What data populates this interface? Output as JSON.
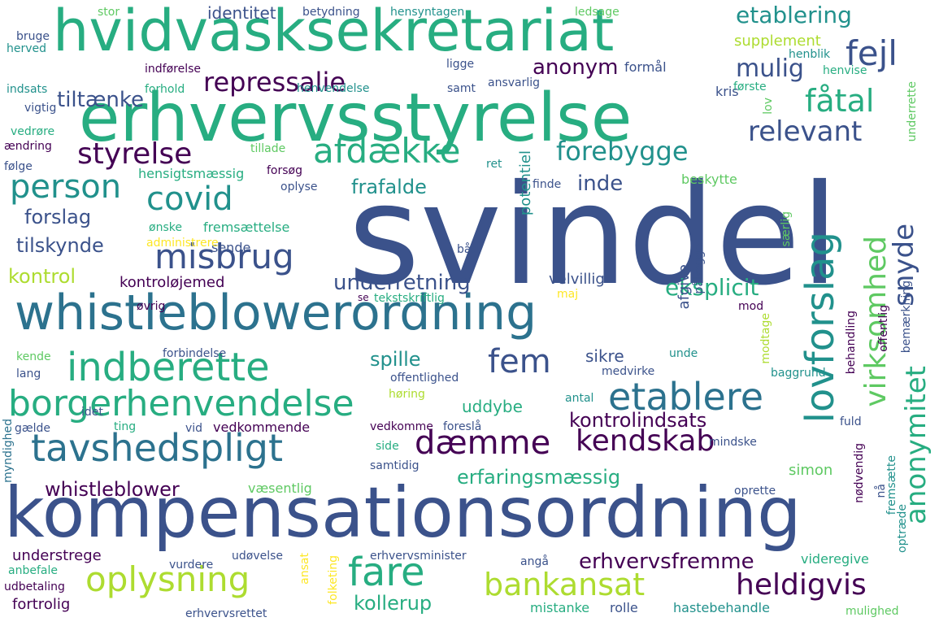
{
  "colors": {
    "purple": "#440154",
    "indigo": "#3b528b",
    "blue": "#2c728e",
    "teal": "#21918c",
    "green": "#27ad81",
    "lightgreen": "#5ec962",
    "lime": "#addc30",
    "yellow": "#fde725"
  },
  "words": [
    {
      "text": "svindel",
      "color": "#3b528b"
    },
    {
      "text": "erhvervsstyrelse",
      "color": "#27ad81"
    },
    {
      "text": "kompensationsordning",
      "color": "#3b528b"
    },
    {
      "text": "hvidvasksekretariat",
      "color": "#27ad81"
    },
    {
      "text": "whistleblowerordning",
      "color": "#2c728e"
    },
    {
      "text": "indberette",
      "color": "#27ad81"
    },
    {
      "text": "borgerhenvendelse",
      "color": "#27ad81"
    },
    {
      "text": "tavshedspligt",
      "color": "#2c728e"
    },
    {
      "text": "lovforslag",
      "color": "#21918c"
    },
    {
      "text": "etablere",
      "color": "#2c728e"
    },
    {
      "text": "misbrug",
      "color": "#3b528b"
    },
    {
      "text": "afdække",
      "color": "#27ad81"
    },
    {
      "text": "styrelse",
      "color": "#440154"
    },
    {
      "text": "person",
      "color": "#21918c"
    },
    {
      "text": "covid",
      "color": "#21918c"
    },
    {
      "text": "oplysning",
      "color": "#addc30"
    },
    {
      "text": "fare",
      "color": "#27ad81"
    },
    {
      "text": "bankansat",
      "color": "#addc30"
    },
    {
      "text": "heldigvis",
      "color": "#440154"
    },
    {
      "text": "dæmme",
      "color": "#440154"
    },
    {
      "text": "kendskab",
      "color": "#440154"
    },
    {
      "text": "fem",
      "color": "#3b528b"
    },
    {
      "text": "repressalie",
      "color": "#440154"
    },
    {
      "text": "fejl",
      "color": "#3b528b"
    },
    {
      "text": "fåtal",
      "color": "#27ad81"
    },
    {
      "text": "relevant",
      "color": "#3b528b"
    },
    {
      "text": "forebygge",
      "color": "#21918c"
    },
    {
      "text": "mulig",
      "color": "#3b528b"
    },
    {
      "text": "etablering",
      "color": "#21918c"
    },
    {
      "text": "anonym",
      "color": "#440154"
    },
    {
      "text": "tiltænke",
      "color": "#3b528b"
    },
    {
      "text": "virksomhed",
      "color": "#5ec962"
    },
    {
      "text": "snyde",
      "color": "#3b528b"
    },
    {
      "text": "anonymitet",
      "color": "#27ad81"
    },
    {
      "text": "eksplicit",
      "color": "#27ad81"
    },
    {
      "text": "underretning",
      "color": "#3b528b"
    },
    {
      "text": "frafalde",
      "color": "#21918c"
    },
    {
      "text": "inde",
      "color": "#3b528b"
    },
    {
      "text": "forslag",
      "color": "#3b528b"
    },
    {
      "text": "tilskynde",
      "color": "#3b528b"
    },
    {
      "text": "kontrol",
      "color": "#addc30"
    },
    {
      "text": "kontroløjemed",
      "color": "#440154"
    },
    {
      "text": "whistleblower",
      "color": "#440154"
    },
    {
      "text": "erfaringsmæssig",
      "color": "#27ad81"
    },
    {
      "text": "kontrolindsats",
      "color": "#440154"
    },
    {
      "text": "uddybe",
      "color": "#27ad81"
    },
    {
      "text": "spille",
      "color": "#21918c"
    },
    {
      "text": "sikre",
      "color": "#3b528b"
    },
    {
      "text": "erhvervsfremme",
      "color": "#440154"
    },
    {
      "text": "kollerup",
      "color": "#27ad81"
    },
    {
      "text": "identitet",
      "color": "#3b528b"
    },
    {
      "text": "supplement",
      "color": "#addc30"
    },
    {
      "text": "formål",
      "color": "#3b528b"
    },
    {
      "text": "velvillig",
      "color": "#3b528b"
    },
    {
      "text": "potentiel",
      "color": "#21918c"
    },
    {
      "text": "fremsættelse",
      "color": "#27ad81"
    },
    {
      "text": "sende",
      "color": "#3b528b"
    },
    {
      "text": "forsøg",
      "color": "#440154"
    },
    {
      "text": "tillade",
      "color": "#5ec962"
    },
    {
      "text": "hensigtsmæssig",
      "color": "#27ad81"
    },
    {
      "text": "oplyse",
      "color": "#3b528b"
    },
    {
      "text": "ønske",
      "color": "#27ad81"
    },
    {
      "text": "administrere",
      "color": "#fde725"
    },
    {
      "text": "ret",
      "color": "#21918c"
    },
    {
      "text": "finde",
      "color": "#3b528b"
    },
    {
      "text": "beskytte",
      "color": "#5ec962"
    },
    {
      "text": "afgive",
      "color": "#3b528b"
    },
    {
      "text": "pålægge",
      "color": "#3b528b"
    },
    {
      "text": "særlig",
      "color": "#5ec962"
    },
    {
      "text": "kris",
      "color": "#3b528b"
    },
    {
      "text": "første",
      "color": "#27ad81"
    },
    {
      "text": "henvise",
      "color": "#27ad81"
    },
    {
      "text": "henblik",
      "color": "#21918c"
    },
    {
      "text": "lov",
      "color": "#5ec962"
    },
    {
      "text": "underrette",
      "color": "#5ec962"
    },
    {
      "text": "ansvarlig",
      "color": "#3b528b"
    },
    {
      "text": "samt",
      "color": "#3b528b"
    },
    {
      "text": "henvendelse",
      "color": "#21918c"
    },
    {
      "text": "ligge",
      "color": "#3b528b"
    },
    {
      "text": "indførelse",
      "color": "#440154"
    },
    {
      "text": "forhold",
      "color": "#27ad81"
    },
    {
      "text": "indsats",
      "color": "#21918c"
    },
    {
      "text": "vigtig",
      "color": "#3b528b"
    },
    {
      "text": "vedrøre",
      "color": "#27ad81"
    },
    {
      "text": "ændring",
      "color": "#440154"
    },
    {
      "text": "følge",
      "color": "#3b528b"
    },
    {
      "text": "bruge",
      "color": "#3b528b"
    },
    {
      "text": "herved",
      "color": "#21918c"
    },
    {
      "text": "stor",
      "color": "#5ec962"
    },
    {
      "text": "betydning",
      "color": "#3b528b"
    },
    {
      "text": "hensyntagen",
      "color": "#21918c"
    },
    {
      "text": "ledsage",
      "color": "#5ec962"
    },
    {
      "text": "båd",
      "color": "#3b528b"
    },
    {
      "text": "maj",
      "color": "#fde725"
    },
    {
      "text": "se",
      "color": "#440154"
    },
    {
      "text": "tekstskriftlig",
      "color": "#27ad81"
    },
    {
      "text": "øvrig",
      "color": "#440154"
    },
    {
      "text": "mod",
      "color": "#440154"
    },
    {
      "text": "modtage",
      "color": "#addc30"
    },
    {
      "text": "offentlig",
      "color": "#440154"
    },
    {
      "text": "bemærkning",
      "color": "#3b528b"
    },
    {
      "text": "behandling",
      "color": "#440154"
    },
    {
      "text": "forbindelse",
      "color": "#3b528b"
    },
    {
      "text": "kende",
      "color": "#5ec962"
    },
    {
      "text": "lang",
      "color": "#3b528b"
    },
    {
      "text": "offentlighed",
      "color": "#3b528b"
    },
    {
      "text": "medvirke",
      "color": "#3b528b"
    },
    {
      "text": "baggrund",
      "color": "#21918c"
    },
    {
      "text": "unde",
      "color": "#21918c"
    },
    {
      "text": "høring",
      "color": "#addc30"
    },
    {
      "text": "antal",
      "color": "#21918c"
    },
    {
      "text": "vedkommende",
      "color": "#440154"
    },
    {
      "text": "ting",
      "color": "#27ad81"
    },
    {
      "text": "vid",
      "color": "#3b528b"
    },
    {
      "text": "idet",
      "color": "#3b528b"
    },
    {
      "text": "gælde",
      "color": "#3b528b"
    },
    {
      "text": "myndighed",
      "color": "#2c728e"
    },
    {
      "text": "vedkomme",
      "color": "#440154"
    },
    {
      "text": "foreslå",
      "color": "#3b528b"
    },
    {
      "text": "fuld",
      "color": "#3b528b"
    },
    {
      "text": "mindske",
      "color": "#3b528b"
    },
    {
      "text": "nødvendig",
      "color": "#440154"
    },
    {
      "text": "simon",
      "color": "#5ec962"
    },
    {
      "text": "fremsætte",
      "color": "#21918c"
    },
    {
      "text": "side",
      "color": "#27ad81"
    },
    {
      "text": "samtidig",
      "color": "#3b528b"
    },
    {
      "text": "væsentlig",
      "color": "#5ec962"
    },
    {
      "text": "oprette",
      "color": "#3b528b"
    },
    {
      "text": "nå",
      "color": "#3b528b"
    },
    {
      "text": "optræde",
      "color": "#21918c"
    },
    {
      "text": "understrege",
      "color": "#440154"
    },
    {
      "text": "udøvelse",
      "color": "#3b528b"
    },
    {
      "text": "erhvervsminister",
      "color": "#3b528b"
    },
    {
      "text": "angå",
      "color": "#3b528b"
    },
    {
      "text": "videregive",
      "color": "#27ad81"
    },
    {
      "text": "anbefale",
      "color": "#27ad81"
    },
    {
      "text": "udbetaling",
      "color": "#440154"
    },
    {
      "text": "vurdere",
      "color": "#3b528b"
    },
    {
      "text": "ansat",
      "color": "#fde725"
    },
    {
      "text": "folketing",
      "color": "#fde725"
    },
    {
      "text": "fortrolig",
      "color": "#440154"
    },
    {
      "text": "erhvervsrettet",
      "color": "#3b528b"
    },
    {
      "text": "mistanke",
      "color": "#27ad81"
    },
    {
      "text": "rolle",
      "color": "#3b528b"
    },
    {
      "text": "hastebehandle",
      "color": "#21918c"
    },
    {
      "text": "mulighed",
      "color": "#5ec962"
    }
  ]
}
